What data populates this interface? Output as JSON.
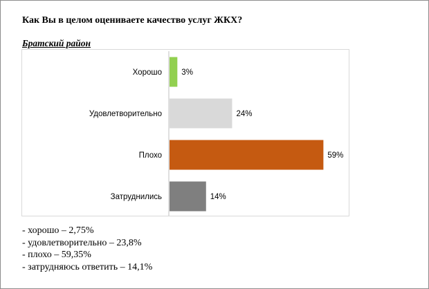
{
  "question": "Как Вы в целом оцениваете качество услуг ЖКХ?",
  "region": "Братский район",
  "chart_data": {
    "type": "bar",
    "orientation": "horizontal",
    "categories": [
      "Хорошо",
      "Удовлетворительно",
      "Плохо",
      "Затруднились"
    ],
    "values": [
      3,
      24,
      59,
      14
    ],
    "value_labels": [
      "3%",
      "24%",
      "59%",
      "14%"
    ],
    "colors": [
      "#92d050",
      "#d9d9d9",
      "#c55a11",
      "#7f7f7f"
    ],
    "xlim": [
      0,
      65
    ],
    "grid": false,
    "legend": "none",
    "title": "",
    "xlabel": "",
    "ylabel": ""
  },
  "notes": [
    "- хорошо – 2,75%",
    "- удовлетворительно – 23,8%",
    "- плохо – 59,35%",
    "- затрудняюсь ответить – 14,1%"
  ]
}
